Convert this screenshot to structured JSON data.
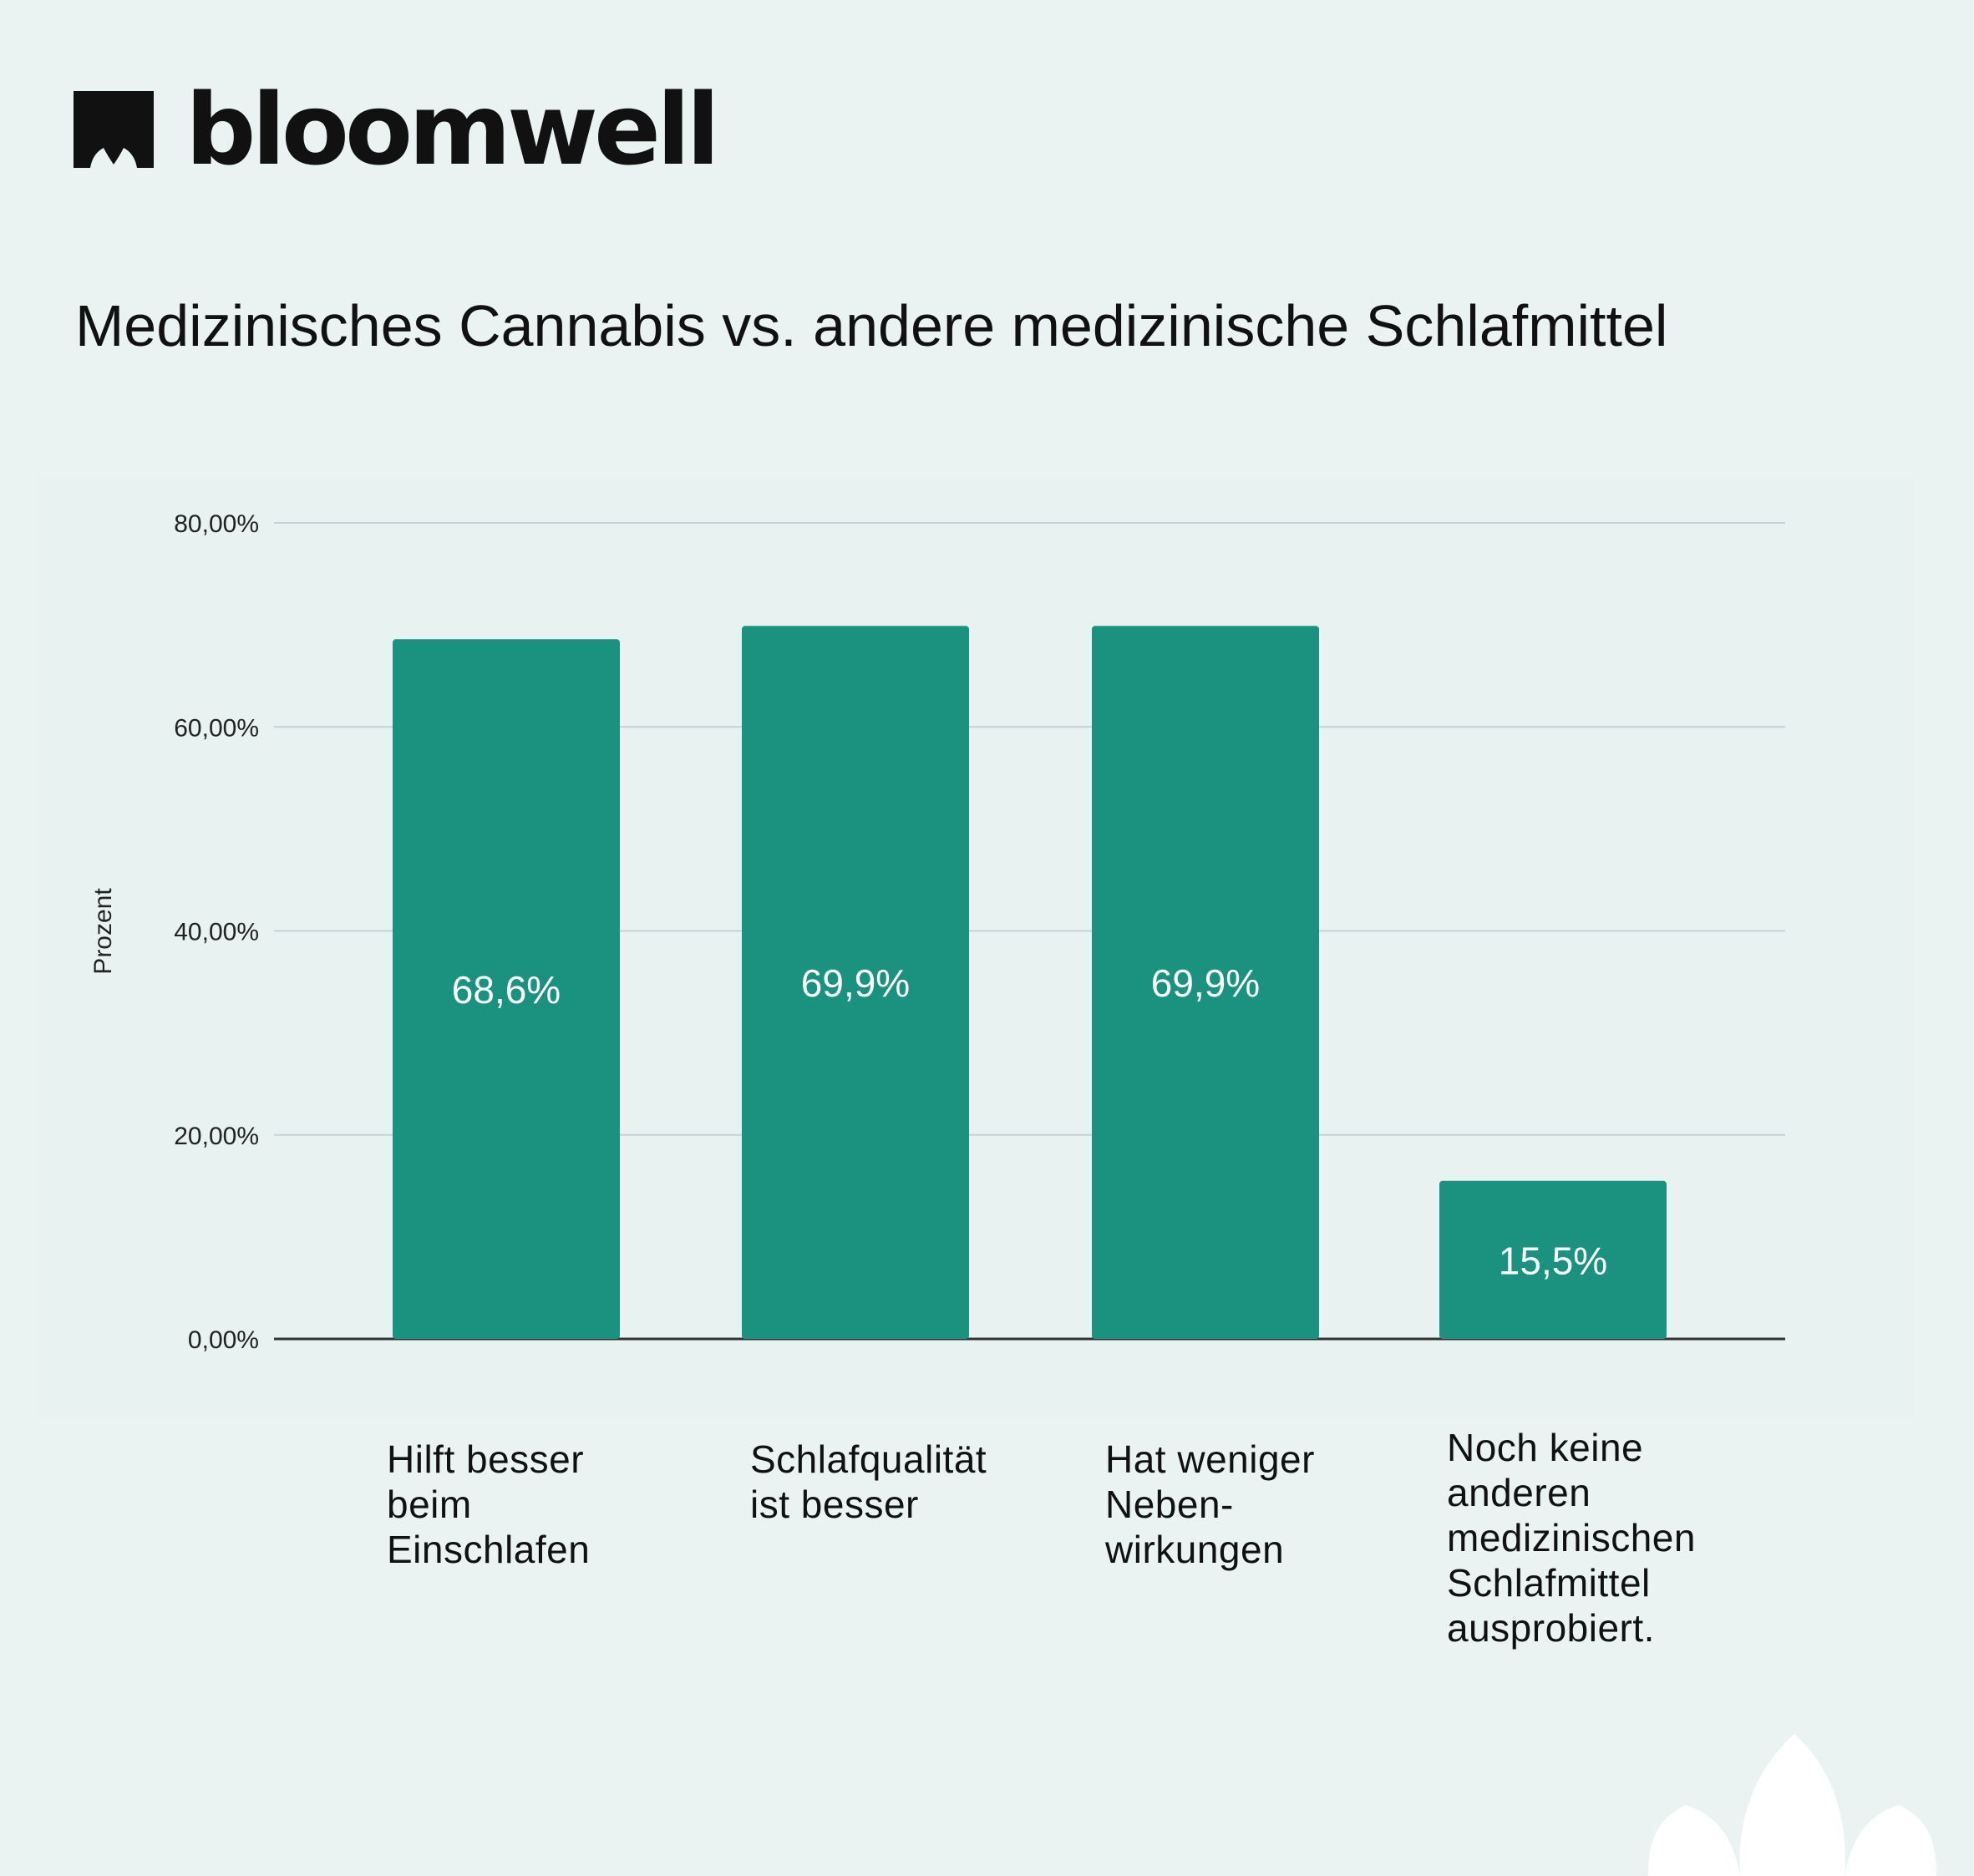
{
  "brand": {
    "name": "bloomwell",
    "logo_icon": "bloomwell-leaf-mark-icon"
  },
  "colors": {
    "background": "#ebf3f2",
    "bar": "#1b9180",
    "bar_label": "#ffffff",
    "grid": "#c8d2d2",
    "baseline": "#333333",
    "text": "#111111"
  },
  "chart_data": {
    "type": "bar",
    "title": "Medizinisches Cannabis vs. andere medizinische Schlafmittel",
    "xlabel": "",
    "ylabel": "Prozent",
    "ylim": [
      0,
      80
    ],
    "grid": true,
    "y_ticks": [
      {
        "value": 0,
        "label": "0,00%"
      },
      {
        "value": 20,
        "label": "20,00%"
      },
      {
        "value": 40,
        "label": "40,00%"
      },
      {
        "value": 60,
        "label": "60,00%"
      },
      {
        "value": 80,
        "label": "80,00%"
      }
    ],
    "categories": [
      "Hilft besser beim Einschlafen",
      "Schlafqualität ist besser",
      "Hat weniger Neben- wirkungen",
      "Noch keine anderen medizinischen Schlafmittel ausprobiert."
    ],
    "category_lines": [
      [
        "Hilft besser",
        "beim",
        "Einschlafen"
      ],
      [
        "Schlafqualität",
        "ist besser"
      ],
      [
        "Hat weniger",
        "Neben-",
        "wirkungen"
      ],
      [
        "Noch keine",
        "anderen",
        "medizinischen",
        "Schlafmittel",
        "ausprobiert."
      ]
    ],
    "values": [
      68.6,
      69.9,
      69.9,
      15.5
    ],
    "data_labels": [
      "68,6%",
      "69,9%",
      "69,9%",
      "15,5%"
    ]
  }
}
